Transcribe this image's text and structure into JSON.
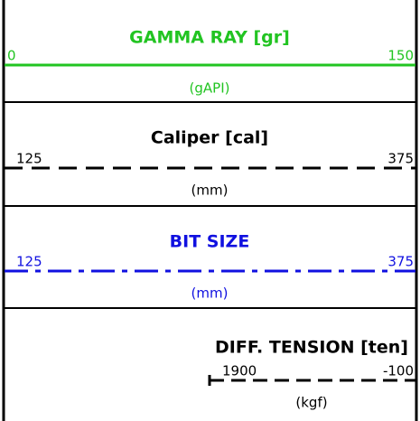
{
  "tracks": [
    {
      "title": "GAMMA RAY  [gr]",
      "left": "0",
      "right": "150",
      "unit": "(gAPI)",
      "color": "#22c422",
      "style": "solid"
    },
    {
      "title": "Caliper  [cal]",
      "left": "125",
      "right": "375",
      "unit": "(mm)",
      "color": "#000000",
      "style": "dashed"
    },
    {
      "title": "BIT SIZE",
      "left": "125",
      "right": "375",
      "unit": "(mm)",
      "color": "#1010e0",
      "style": "dashdot"
    },
    {
      "title": "DIFF. TENSION  [ten]",
      "left": "1900",
      "right": "-100",
      "unit": "(kgf)",
      "color": "#000000",
      "style": "dashed-short"
    }
  ]
}
